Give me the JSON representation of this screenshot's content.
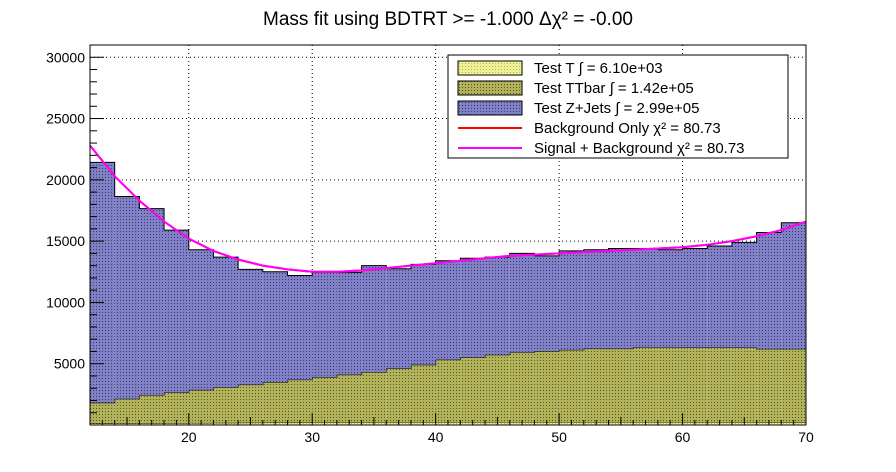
{
  "chart_data": {
    "type": "bar",
    "title": "Mass fit using BDTRT >= -1.000 Δχ² = -0.00",
    "xlabel": "",
    "ylabel": "",
    "xlim": [
      12,
      70
    ],
    "ylim": [
      0,
      31000
    ],
    "x_ticks": [
      20,
      30,
      40,
      50,
      60,
      70
    ],
    "y_ticks": [
      5000,
      10000,
      15000,
      20000,
      25000,
      30000
    ],
    "x_tick_labels": [
      "20",
      "30",
      "40",
      "50",
      "60",
      "70"
    ],
    "y_tick_labels": [
      "5000",
      "10000",
      "15000",
      "20000",
      "25000",
      "30000"
    ],
    "grid": true,
    "legend_position": "top-right",
    "bin_edges": [
      12,
      14,
      16,
      18,
      20,
      22,
      24,
      26,
      28,
      30,
      32,
      34,
      36,
      38,
      40,
      42,
      44,
      46,
      48,
      50,
      52,
      54,
      56,
      58,
      60,
      62,
      64,
      66,
      68,
      70
    ],
    "series": [
      {
        "name": "Test T ∫ = 6.10e+03",
        "role": "stacked-bottom",
        "fill": "#e6e68c",
        "values": [
          120,
          140,
          150,
          160,
          170,
          180,
          190,
          200,
          200,
          210,
          210,
          220,
          220,
          220,
          230,
          230,
          230,
          230,
          230,
          230,
          230,
          230,
          230,
          230,
          220,
          220,
          220,
          210,
          210
        ]
      },
      {
        "name": "Test TTbar ∫ = 1.42e+05",
        "role": "stacked-middle",
        "fill": "#a6a663",
        "values": [
          1700,
          2000,
          2300,
          2500,
          2700,
          2900,
          3100,
          3300,
          3500,
          3700,
          3900,
          4100,
          4400,
          4700,
          5100,
          5300,
          5500,
          5700,
          5800,
          5900,
          6000,
          6000,
          6100,
          6100,
          6100,
          6100,
          6100,
          6000,
          6000
        ]
      },
      {
        "name": "Test Z+Jets ∫ = 2.99e+05",
        "role": "stacked-top",
        "fill": "#7474b8",
        "values": [
          19600,
          16500,
          15200,
          13240,
          11430,
          10620,
          9410,
          9000,
          8500,
          8540,
          8340,
          8680,
          8130,
          8180,
          8070,
          8070,
          7970,
          8070,
          7770,
          8070,
          8070,
          8170,
          8070,
          7970,
          8080,
          8280,
          8580,
          9490,
          10290
        ]
      },
      {
        "name": "Background Only χ² = 80.73",
        "role": "fit-line",
        "color": "#ff0000",
        "x": [
          12,
          14,
          16,
          18,
          20,
          22,
          24,
          26,
          28,
          30,
          32,
          34,
          36,
          38,
          40,
          42,
          44,
          46,
          48,
          50,
          52,
          54,
          56,
          58,
          60,
          62,
          64,
          66,
          68,
          70
        ],
        "values": [
          22800,
          20300,
          18300,
          16600,
          15200,
          14200,
          13500,
          13000,
          12700,
          12500,
          12500,
          12600,
          12800,
          13000,
          13200,
          13400,
          13600,
          13800,
          13900,
          14000,
          14100,
          14200,
          14300,
          14400,
          14500,
          14700,
          15000,
          15400,
          15900,
          16600
        ]
      },
      {
        "name": "Signal + Background χ² = 80.73",
        "role": "fit-line",
        "color": "#ff00ff",
        "x": [
          12,
          14,
          16,
          18,
          20,
          22,
          24,
          26,
          28,
          30,
          32,
          34,
          36,
          38,
          40,
          42,
          44,
          46,
          48,
          50,
          52,
          54,
          56,
          58,
          60,
          62,
          64,
          66,
          68,
          70
        ],
        "values": [
          22800,
          20300,
          18300,
          16600,
          15200,
          14200,
          13500,
          13000,
          12700,
          12500,
          12500,
          12600,
          12800,
          13000,
          13200,
          13400,
          13600,
          13800,
          13900,
          14000,
          14100,
          14200,
          14300,
          14400,
          14500,
          14700,
          15000,
          15400,
          15900,
          16600
        ]
      }
    ]
  }
}
